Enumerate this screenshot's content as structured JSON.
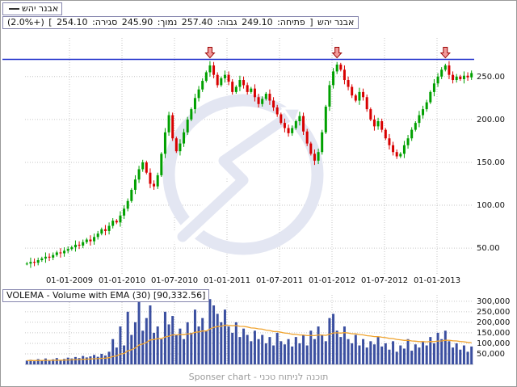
{
  "legend": {
    "series_label": "אבנר יהש"
  },
  "info_bar": {
    "name": "אבנר יהש",
    "bracket_open": "[",
    "open_label": "פתיחה:",
    "open": "249.10",
    "high_label": "גבוה:",
    "high": "257.40",
    "low_label": "נמוך:",
    "low": "245.90",
    "close_label": "סגירה:",
    "close": "254.10",
    "bracket_close": "]",
    "change": "(+2.0%)"
  },
  "volume_header": {
    "label": "VOLEMA - Volume with EMA (30) [90,332.56]"
  },
  "footer": {
    "credit": "Sponser chart - תוכנה לניתוח טכני"
  },
  "chart_data": {
    "type": "candlestick",
    "title": "אבנר יהש",
    "x_labels": [
      "01-01-2009",
      "01-01-2010",
      "01-07-2010",
      "01-01-2011",
      "01-07-2011",
      "01-01-2012",
      "01-07-2012",
      "01-01-2013"
    ],
    "price_axis": {
      "ticks": [
        250,
        200,
        150,
        100,
        50
      ],
      "tick_labels": [
        "250.00",
        "200.00",
        "150.00",
        "100.00",
        "50.00"
      ],
      "ylim": [
        20,
        295
      ]
    },
    "volume_axis": {
      "ticks": [
        300000,
        250000,
        200000,
        150000,
        100000,
        50000
      ],
      "tick_labels": [
        "300,000",
        "250,000",
        "200,000",
        "150,000",
        "100,000",
        "50,000"
      ],
      "ylim": [
        0,
        330000
      ]
    },
    "resistance_level": 270,
    "arrow_indices": [
      49,
      83,
      112
    ],
    "last_candle": {
      "open": 249.1,
      "high": 257.4,
      "low": 245.9,
      "close": 254.1,
      "change_pct": 2.0
    },
    "closes": [
      32,
      34,
      33,
      36,
      38,
      40,
      39,
      42,
      45,
      44,
      47,
      49,
      51,
      54,
      53,
      57,
      60,
      58,
      63,
      67,
      72,
      70,
      76,
      82,
      80,
      88,
      96,
      105,
      118,
      130,
      142,
      150,
      138,
      125,
      122,
      135,
      160,
      185,
      205,
      178,
      163,
      172,
      185,
      200,
      212,
      225,
      235,
      245,
      255,
      263,
      252,
      240,
      248,
      252,
      244,
      232,
      238,
      246,
      240,
      232,
      236,
      226,
      218,
      224,
      230,
      222,
      214,
      206,
      196,
      190,
      184,
      190,
      198,
      204,
      186,
      172,
      160,
      152,
      162,
      185,
      215,
      240,
      256,
      264,
      258,
      246,
      238,
      228,
      222,
      232,
      226,
      212,
      200,
      192,
      198,
      188,
      178,
      170,
      162,
      157,
      160,
      170,
      178,
      188,
      196,
      205,
      212,
      220,
      232,
      242,
      250,
      258,
      263,
      252,
      246,
      250,
      247,
      251,
      249.1,
      254.1
    ],
    "volumes": [
      18000,
      22000,
      15000,
      25000,
      20000,
      28000,
      17000,
      24000,
      30000,
      21000,
      26000,
      32000,
      28000,
      35000,
      30000,
      40000,
      33000,
      38000,
      45000,
      36000,
      50000,
      42000,
      60000,
      120000,
      80000,
      180000,
      90000,
      250000,
      140000,
      200000,
      300000,
      160000,
      220000,
      280000,
      150000,
      180000,
      120000,
      250000,
      190000,
      230000,
      140000,
      170000,
      120000,
      200000,
      150000,
      260000,
      180000,
      220000,
      160000,
      310000,
      280000,
      240000,
      200000,
      260000,
      180000,
      150000,
      200000,
      130000,
      170000,
      140000,
      110000,
      160000,
      120000,
      140000,
      100000,
      130000,
      90000,
      150000,
      110000,
      95000,
      120000,
      85000,
      130000,
      100000,
      140000,
      90000,
      160000,
      120000,
      180000,
      140000,
      110000,
      220000,
      240000,
      160000,
      130000,
      180000,
      120000,
      100000,
      140000,
      90000,
      120000,
      80000,
      110000,
      95000,
      130000,
      85000,
      100000,
      70000,
      110000,
      60000,
      90000,
      75000,
      120000,
      65000,
      95000,
      80000,
      110000,
      90000,
      130000,
      100000,
      150000,
      120000,
      160000,
      110000,
      80000,
      100000,
      70000,
      90000,
      60000,
      85000
    ],
    "ema_period": 30,
    "ema_last_label": "90,332.56",
    "colors": {
      "up": "#00a000",
      "down": "#d80000",
      "volume": "#3b4fa0",
      "ema": "#f0a430",
      "resistance": "#2030cc",
      "arrow_fill": "#f29a9a",
      "arrow_stroke": "#990000",
      "watermark": "#e3e6f2",
      "grid": "#c6c6c6"
    }
  }
}
